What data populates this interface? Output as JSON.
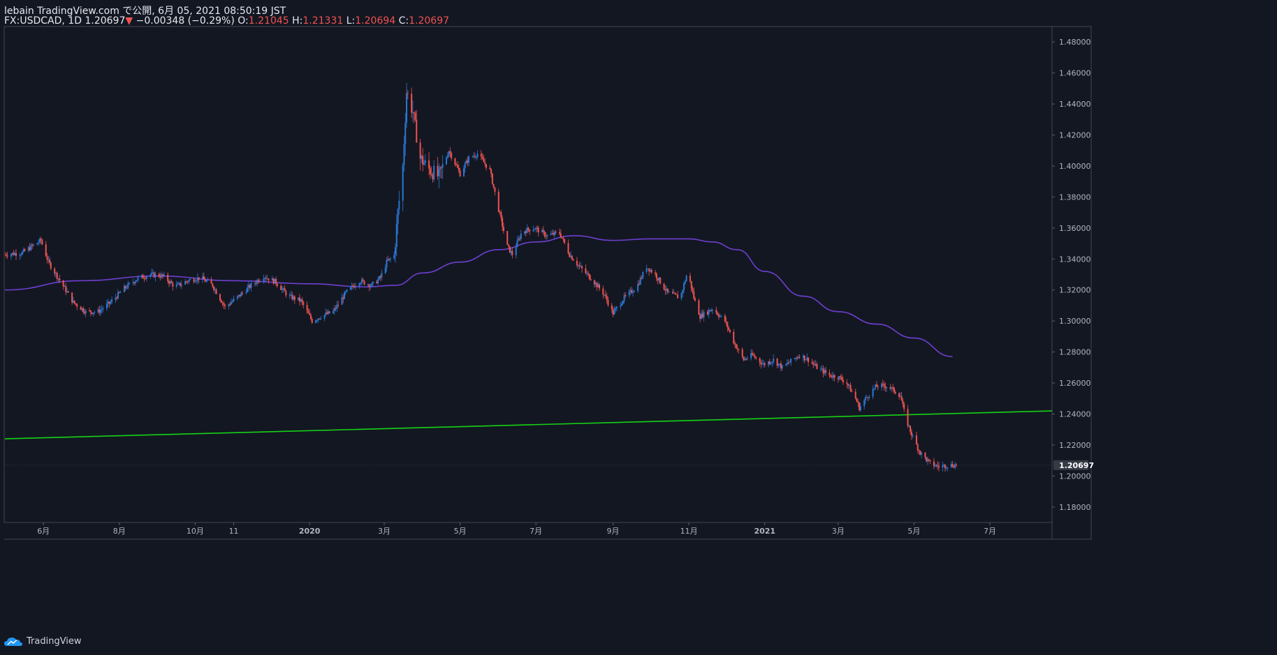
{
  "header": {
    "line1": "lebain TradingView.com で公開, 6月 05, 2021 08:50:19 JST",
    "symbol": "FX:USDCAD",
    "interval": "1D",
    "last": "1.20697",
    "arrow": "▼",
    "change": "−0.00348 (−0.29%)",
    "o_label": "O:",
    "o_value": "1.21045",
    "h_label": "H:",
    "h_value": "1.21331",
    "l_label": "L:",
    "l_value": "1.20694",
    "c_label": "C:",
    "c_value": "1.20697"
  },
  "footer": {
    "brand": "TradingView",
    "logo_icon": "tradingview-cloud-icon"
  },
  "colors": {
    "background": "#131722",
    "up": "#2a78d4",
    "down": "#ef5350",
    "ma": "#6e3fd0",
    "trendline": "#16d216",
    "price_tag_bg": "#363a45"
  },
  "chart_data": {
    "type": "candlestick",
    "title": "",
    "ylim": [
      1.17,
      1.49
    ],
    "y_ticks": [
      "1.18000",
      "1.20000",
      "1.22000",
      "1.24000",
      "1.26000",
      "1.28000",
      "1.30000",
      "1.32000",
      "1.34000",
      "1.36000",
      "1.38000",
      "1.40000",
      "1.42000",
      "1.44000",
      "1.46000",
      "1.48000"
    ],
    "last_price_label": "1.20697",
    "x_ticks": [
      {
        "label": "6月",
        "date": "2019-06-01"
      },
      {
        "label": "8月",
        "date": "2019-08-01"
      },
      {
        "label": "10月",
        "date": "2019-10-01"
      },
      {
        "label": "11",
        "date": "2019-11-01"
      },
      {
        "label": "2020",
        "date": "2020-01-01"
      },
      {
        "label": "3月",
        "date": "2020-03-01"
      },
      {
        "label": "5月",
        "date": "2020-05-01"
      },
      {
        "label": "7月",
        "date": "2020-07-01"
      },
      {
        "label": "9月",
        "date": "2020-09-01"
      },
      {
        "label": "11月",
        "date": "2020-11-01"
      },
      {
        "label": "2021",
        "date": "2021-01-01"
      },
      {
        "label": "3月",
        "date": "2021-03-01"
      },
      {
        "label": "5月",
        "date": "2021-05-01"
      },
      {
        "label": "7月",
        "date": "2021-07-01"
      }
    ],
    "price_path": [
      [
        "2019-05-01",
        1.343
      ],
      [
        "2019-05-15",
        1.344
      ],
      [
        "2019-05-30",
        1.352
      ],
      [
        "2019-06-05",
        1.338
      ],
      [
        "2019-06-15",
        1.325
      ],
      [
        "2019-06-25",
        1.312
      ],
      [
        "2019-07-05",
        1.306
      ],
      [
        "2019-07-15",
        1.306
      ],
      [
        "2019-07-25",
        1.312
      ],
      [
        "2019-08-05",
        1.321
      ],
      [
        "2019-08-15",
        1.327
      ],
      [
        "2019-08-25",
        1.33
      ],
      [
        "2019-09-05",
        1.329
      ],
      [
        "2019-09-15",
        1.322
      ],
      [
        "2019-09-25",
        1.326
      ],
      [
        "2019-10-05",
        1.328
      ],
      [
        "2019-10-15",
        1.323
      ],
      [
        "2019-10-25",
        1.309
      ],
      [
        "2019-11-05",
        1.316
      ],
      [
        "2019-11-15",
        1.323
      ],
      [
        "2019-11-25",
        1.329
      ],
      [
        "2019-12-05",
        1.325
      ],
      [
        "2019-12-15",
        1.316
      ],
      [
        "2019-12-25",
        1.313
      ],
      [
        "2020-01-03",
        1.3
      ],
      [
        "2020-01-10",
        1.303
      ],
      [
        "2020-01-20",
        1.306
      ],
      [
        "2020-01-30",
        1.318
      ],
      [
        "2020-02-10",
        1.326
      ],
      [
        "2020-02-20",
        1.323
      ],
      [
        "2020-02-27",
        1.328
      ],
      [
        "2020-03-03",
        1.338
      ],
      [
        "2020-03-09",
        1.342
      ],
      [
        "2020-03-12",
        1.37
      ],
      [
        "2020-03-16",
        1.4
      ],
      [
        "2020-03-19",
        1.448
      ],
      [
        "2020-03-24",
        1.435
      ],
      [
        "2020-03-30",
        1.405
      ],
      [
        "2020-04-06",
        1.398
      ],
      [
        "2020-04-14",
        1.393
      ],
      [
        "2020-04-22",
        1.41
      ],
      [
        "2020-05-01",
        1.395
      ],
      [
        "2020-05-08",
        1.405
      ],
      [
        "2020-05-15",
        1.408
      ],
      [
        "2020-05-25",
        1.397
      ],
      [
        "2020-06-01",
        1.372
      ],
      [
        "2020-06-08",
        1.348
      ],
      [
        "2020-06-12",
        1.343
      ],
      [
        "2020-06-20",
        1.358
      ],
      [
        "2020-06-30",
        1.36
      ],
      [
        "2020-07-10",
        1.355
      ],
      [
        "2020-07-20",
        1.357
      ],
      [
        "2020-07-28",
        1.343
      ],
      [
        "2020-08-05",
        1.335
      ],
      [
        "2020-08-15",
        1.327
      ],
      [
        "2020-08-25",
        1.317
      ],
      [
        "2020-09-01",
        1.305
      ],
      [
        "2020-09-10",
        1.315
      ],
      [
        "2020-09-20",
        1.322
      ],
      [
        "2020-09-28",
        1.335
      ],
      [
        "2020-10-05",
        1.33
      ],
      [
        "2020-10-15",
        1.318
      ],
      [
        "2020-10-25",
        1.315
      ],
      [
        "2020-10-31",
        1.332
      ],
      [
        "2020-11-05",
        1.315
      ],
      [
        "2020-11-10",
        1.303
      ],
      [
        "2020-11-20",
        1.308
      ],
      [
        "2020-11-30",
        1.3
      ],
      [
        "2020-12-08",
        1.285
      ],
      [
        "2020-12-15",
        1.275
      ],
      [
        "2020-12-22",
        1.278
      ],
      [
        "2020-12-31",
        1.272
      ],
      [
        "2021-01-08",
        1.275
      ],
      [
        "2021-01-15",
        1.27
      ],
      [
        "2021-01-22",
        1.274
      ],
      [
        "2021-01-29",
        1.278
      ],
      [
        "2021-02-05",
        1.275
      ],
      [
        "2021-02-12",
        1.27
      ],
      [
        "2021-02-22",
        1.265
      ],
      [
        "2021-03-01",
        1.264
      ],
      [
        "2021-03-08",
        1.26
      ],
      [
        "2021-03-15",
        1.25
      ],
      [
        "2021-03-18",
        1.244
      ],
      [
        "2021-03-25",
        1.252
      ],
      [
        "2021-04-01",
        1.258
      ],
      [
        "2021-04-10",
        1.258
      ],
      [
        "2021-04-20",
        1.252
      ],
      [
        "2021-04-24",
        1.238
      ],
      [
        "2021-04-30",
        1.225
      ],
      [
        "2021-05-06",
        1.215
      ],
      [
        "2021-05-14",
        1.208
      ],
      [
        "2021-05-21",
        1.206
      ],
      [
        "2021-05-28",
        1.207
      ],
      [
        "2021-06-04",
        1.20697
      ]
    ],
    "moving_average": [
      [
        "2019-05-01",
        1.32
      ],
      [
        "2019-07-01",
        1.326
      ],
      [
        "2019-09-01",
        1.329
      ],
      [
        "2019-11-01",
        1.326
      ],
      [
        "2020-01-01",
        1.324
      ],
      [
        "2020-02-15",
        1.322
      ],
      [
        "2020-03-10",
        1.323
      ],
      [
        "2020-04-01",
        1.331
      ],
      [
        "2020-05-01",
        1.338
      ],
      [
        "2020-06-01",
        1.346
      ],
      [
        "2020-07-01",
        1.351
      ],
      [
        "2020-08-01",
        1.355
      ],
      [
        "2020-09-01",
        1.352
      ],
      [
        "2020-10-01",
        1.353
      ],
      [
        "2020-11-01",
        1.353
      ],
      [
        "2020-11-20",
        1.351
      ],
      [
        "2020-12-10",
        1.346
      ],
      [
        "2021-01-01",
        1.332
      ],
      [
        "2021-02-01",
        1.316
      ],
      [
        "2021-03-01",
        1.306
      ],
      [
        "2021-04-01",
        1.298
      ],
      [
        "2021-05-01",
        1.289
      ],
      [
        "2021-06-01",
        1.277
      ]
    ],
    "trendline": [
      [
        "2019-05-01",
        1.224
      ],
      [
        "2021-08-20",
        1.242
      ]
    ]
  }
}
